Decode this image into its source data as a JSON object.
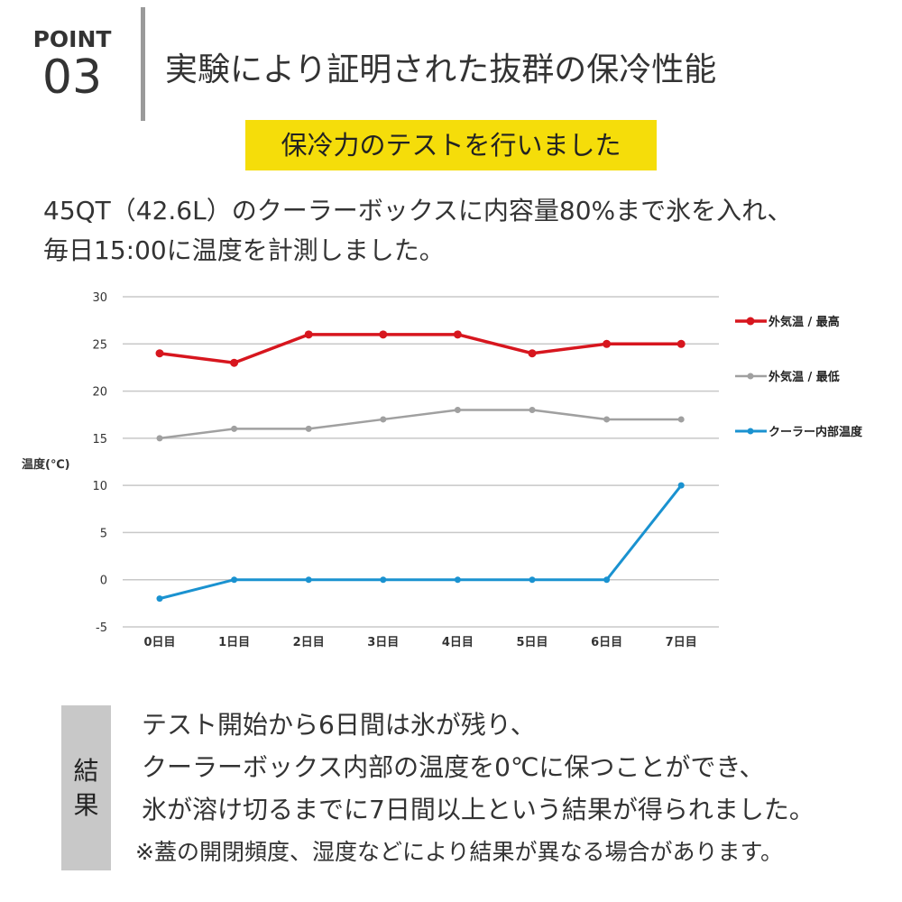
{
  "header": {
    "point_label": "POINT",
    "point_number": "03",
    "title": "実験により証明された抜群の保冷性能"
  },
  "subtitle": "保冷力のテストを行いました",
  "intro": [
    "45QT（42.6L）のクーラーボックスに内容量80%まで氷を入れ、",
    "毎日15:00に温度を計測しました。"
  ],
  "chart_data": {
    "type": "line",
    "ylabel": "温度(℃)",
    "xlabel": "",
    "ylim": [
      -5,
      30
    ],
    "yticks": [
      30,
      25,
      20,
      15,
      10,
      5,
      0,
      -5
    ],
    "categories": [
      "0日目",
      "1日目",
      "2日目",
      "3日目",
      "4日目",
      "5日目",
      "6日目",
      "7日目"
    ],
    "grid": true,
    "legend_position": "right",
    "series": [
      {
        "name": "外気温 / 最高",
        "color": "#d7161e",
        "values": [
          24,
          23,
          26,
          26,
          26,
          24,
          25,
          25
        ]
      },
      {
        "name": "外気温 / 最低",
        "color": "#a0a0a0",
        "values": [
          15,
          16,
          16,
          17,
          18,
          18,
          17,
          17
        ]
      },
      {
        "name": "クーラー内部温度",
        "color": "#1a92d0",
        "values": [
          -2,
          0,
          0,
          0,
          0,
          0,
          0,
          10
        ]
      }
    ]
  },
  "result": {
    "label_chars": [
      "結",
      "果"
    ],
    "lines": [
      "テスト開始から6日間は氷が残り、",
      "クーラーボックス内部の温度を0℃に保つことができ、",
      "氷が溶け切るまでに7日間以上という結果が得られました。",
      "※蓋の開閉頻度、湿度などにより結果が異なる場合があります。"
    ]
  }
}
